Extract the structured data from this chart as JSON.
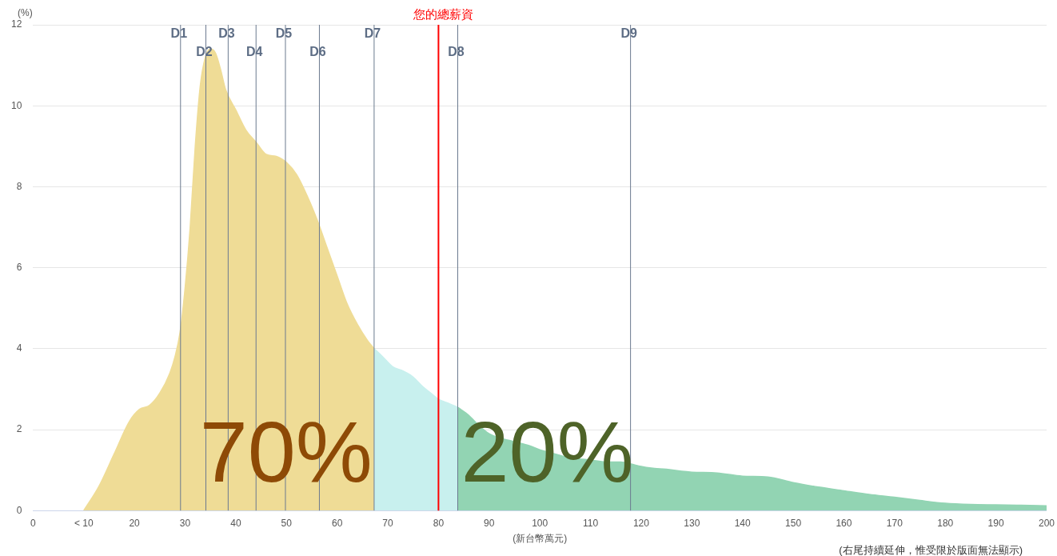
{
  "chart_data": {
    "type": "area",
    "xlabel": "(新台幣萬元)",
    "ylabel": "(%)",
    "xlim": [
      0,
      200
    ],
    "xticks": [
      0,
      {
        "value": 10,
        "label": "< 10"
      },
      20,
      30,
      40,
      50,
      60,
      70,
      80,
      90,
      100,
      110,
      120,
      130,
      140,
      150,
      160,
      170,
      180,
      190,
      200
    ],
    "ylim": [
      0,
      12
    ],
    "yticks": [
      0,
      2,
      4,
      6,
      8,
      10,
      12
    ],
    "grid": "y",
    "legend": false,
    "series": [
      {
        "color": "#efdc96",
        "x": [
          10,
          13,
          16,
          19,
          21,
          23,
          25,
          27,
          28,
          29,
          30,
          31,
          32,
          33,
          34,
          35,
          36,
          37,
          38,
          40,
          42,
          44,
          46,
          48,
          50,
          52,
          54,
          56,
          58,
          60,
          62,
          64,
          66,
          67.3
        ],
        "values": [
          0,
          0.6,
          1.4,
          2.2,
          2.5,
          2.6,
          2.9,
          3.4,
          3.8,
          4.4,
          5.5,
          7.0,
          9.0,
          10.5,
          11.2,
          11.4,
          11.3,
          10.9,
          10.4,
          9.9,
          9.4,
          9.1,
          8.8,
          8.75,
          8.6,
          8.3,
          7.8,
          7.2,
          6.5,
          5.8,
          5.1,
          4.6,
          4.2,
          4.0
        ]
      },
      {
        "color": "#c8f0ee",
        "x": [
          67.3,
          69,
          71,
          73,
          75,
          77,
          79,
          80,
          82,
          83.8
        ],
        "values": [
          4.0,
          3.8,
          3.55,
          3.45,
          3.3,
          3.05,
          2.85,
          2.75,
          2.65,
          2.55
        ]
      },
      {
        "color": "#92d4b3",
        "x": [
          83.8,
          86,
          88,
          90,
          92,
          95,
          98,
          100,
          103,
          106,
          110,
          113,
          116,
          118,
          120,
          122,
          125,
          128,
          130,
          135,
          140,
          145,
          150,
          155,
          160,
          165,
          170,
          175,
          180,
          185,
          190,
          195,
          200
        ],
        "values": [
          2.55,
          2.35,
          2.1,
          1.9,
          1.8,
          1.7,
          1.6,
          1.5,
          1.4,
          1.3,
          1.25,
          1.2,
          1.2,
          1.15,
          1.09,
          1.05,
          1.02,
          0.97,
          0.95,
          0.93,
          0.85,
          0.83,
          0.69,
          0.58,
          0.49,
          0.4,
          0.33,
          0.25,
          0.18,
          0.15,
          0.14,
          0.13,
          0.12
        ]
      }
    ],
    "ref_lines": [
      {
        "axis": "x",
        "value": 29.1,
        "label": "D1"
      },
      {
        "axis": "x",
        "value": 34.1,
        "label": "D2"
      },
      {
        "axis": "x",
        "value": 38.5,
        "label": "D3"
      },
      {
        "axis": "x",
        "value": 44.0,
        "label": "D4"
      },
      {
        "axis": "x",
        "value": 49.8,
        "label": "D5"
      },
      {
        "axis": "x",
        "value": 56.5,
        "label": "D6"
      },
      {
        "axis": "x",
        "value": 67.3,
        "label": "D7"
      },
      {
        "axis": "x",
        "value": 83.8,
        "label": "D8"
      },
      {
        "axis": "x",
        "value": 117.9,
        "label": "D9"
      },
      {
        "axis": "x",
        "value": 80.0,
        "label": "您的總薪資",
        "color": "#ff0000"
      }
    ],
    "annotations": [
      "70%",
      "20%",
      "(右尾持續延伸，惟受限於版面無法顯示)"
    ]
  }
}
